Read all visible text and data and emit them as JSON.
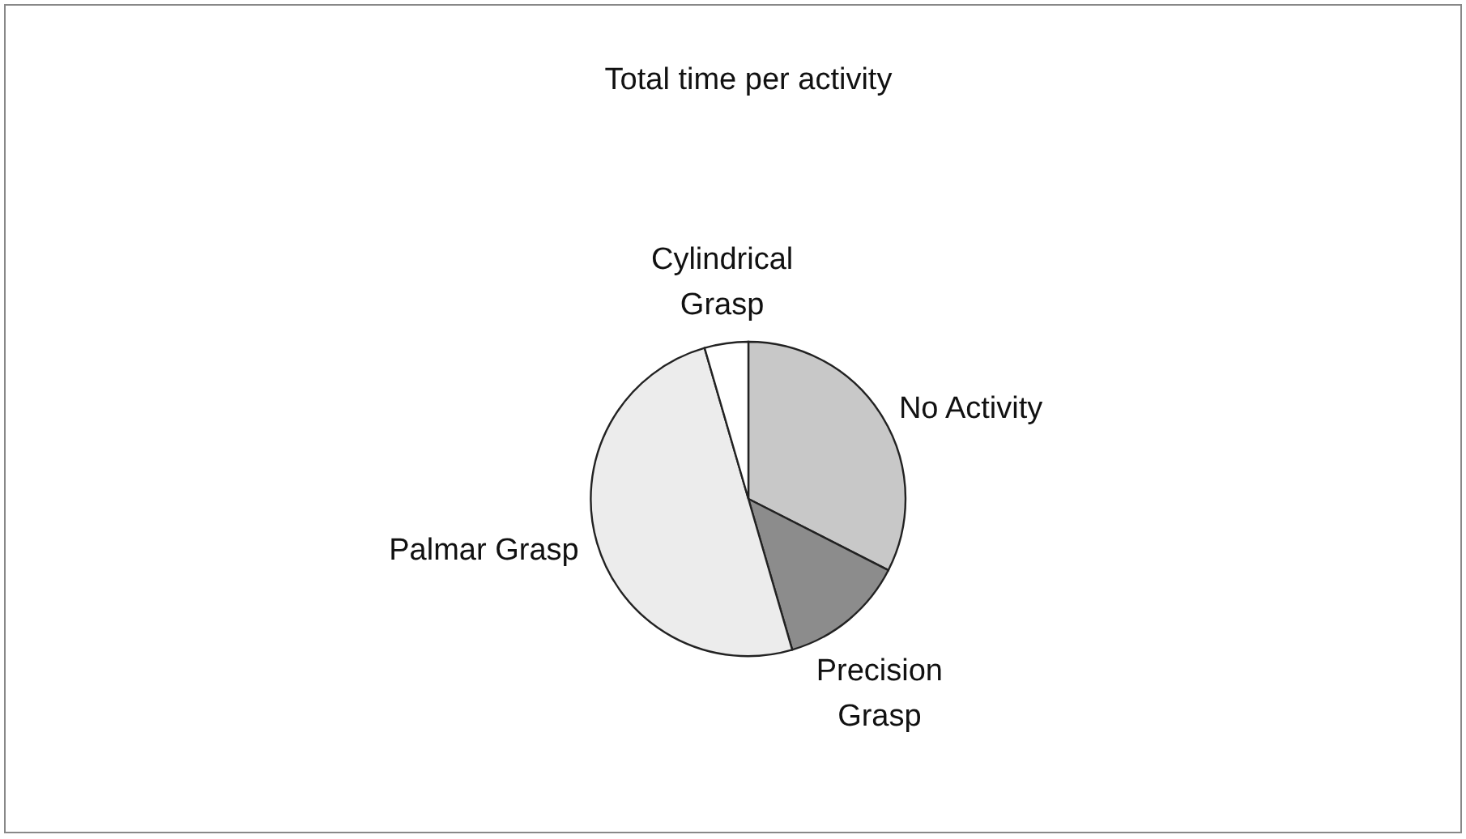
{
  "chart_data": {
    "type": "pie",
    "title": "Total time per activity",
    "categories": [
      "No Activity",
      "Precision Grasp",
      "Palmar Grasp",
      "Cylindrical Grasp"
    ],
    "values": [
      32.5,
      13,
      50,
      4.5
    ],
    "colors": [
      "#c8c8c8",
      "#8c8c8c",
      "#ececec",
      "#ffffff"
    ]
  }
}
